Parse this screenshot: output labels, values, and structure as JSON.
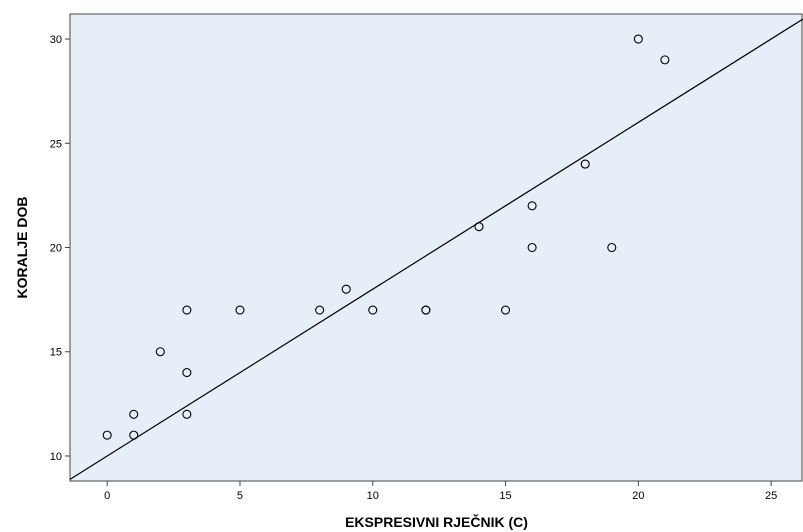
{
  "chart_data": {
    "type": "scatter",
    "title": "",
    "xlabel": "EKSPRESIVNI RJEČNIK (C)",
    "ylabel": "KORALJE DOB",
    "xlim": [
      -1.4,
      26.2
    ],
    "ylim": [
      8.8,
      31.2
    ],
    "xticks": [
      0,
      5,
      10,
      15,
      20,
      25
    ],
    "yticks": [
      10,
      15,
      20,
      25,
      30
    ],
    "grid": false,
    "legend": "none",
    "colors": {
      "plot_background": "#e6eff8",
      "marker_stroke": "#000000",
      "line": "#000000"
    },
    "points": [
      {
        "x": 0,
        "y": 11
      },
      {
        "x": 1,
        "y": 12
      },
      {
        "x": 1,
        "y": 11
      },
      {
        "x": 2,
        "y": 15
      },
      {
        "x": 3,
        "y": 17
      },
      {
        "x": 3,
        "y": 14
      },
      {
        "x": 3,
        "y": 12
      },
      {
        "x": 5,
        "y": 17
      },
      {
        "x": 8,
        "y": 17
      },
      {
        "x": 9,
        "y": 18
      },
      {
        "x": 10,
        "y": 17
      },
      {
        "x": 12,
        "y": 17
      },
      {
        "x": 12,
        "y": 17
      },
      {
        "x": 14,
        "y": 21
      },
      {
        "x": 15,
        "y": 17
      },
      {
        "x": 16,
        "y": 22
      },
      {
        "x": 16,
        "y": 20
      },
      {
        "x": 18,
        "y": 24
      },
      {
        "x": 19,
        "y": 20
      },
      {
        "x": 20,
        "y": 30
      },
      {
        "x": 21,
        "y": 29
      }
    ],
    "fit_line": {
      "intercept": 10.0,
      "slope": 0.8
    }
  }
}
